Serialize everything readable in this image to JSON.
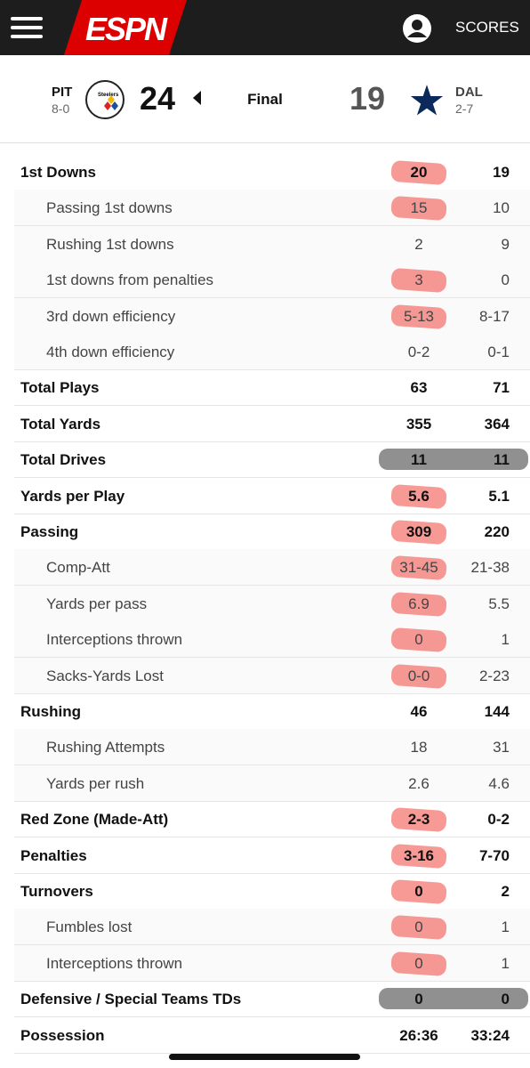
{
  "header": {
    "logo": "ESPN",
    "scores_link": "SCORES"
  },
  "game": {
    "status": "Final",
    "home": {
      "abbr": "PIT",
      "record": "8-0",
      "score": "24",
      "logo_text": "Steelers"
    },
    "away": {
      "abbr": "DAL",
      "record": "2-7",
      "score": "19"
    }
  },
  "table": {
    "rows": [
      {
        "label": "1st Downs",
        "pit": "20",
        "dal": "19",
        "level": "main",
        "highlight": "red"
      },
      {
        "label": "Passing 1st downs",
        "pit": "15",
        "dal": "10",
        "level": "sub",
        "highlight": "red"
      },
      {
        "label": "Rushing 1st downs",
        "pit": "2",
        "dal": "9",
        "level": "sub"
      },
      {
        "label": "1st downs from penalties",
        "pit": "3",
        "dal": "0",
        "level": "sub",
        "highlight": "red"
      },
      {
        "label": "3rd down efficiency",
        "pit": "5-13",
        "dal": "8-17",
        "level": "sub",
        "highlight": "red"
      },
      {
        "label": "4th down efficiency",
        "pit": "0-2",
        "dal": "0-1",
        "level": "sub"
      },
      {
        "label": "Total Plays",
        "pit": "63",
        "dal": "71",
        "level": "main"
      },
      {
        "label": "Total Yards",
        "pit": "355",
        "dal": "364",
        "level": "main"
      },
      {
        "label": "Total Drives",
        "pit": "11",
        "dal": "11",
        "level": "main",
        "highlight": "gray"
      },
      {
        "label": "Yards per Play",
        "pit": "5.6",
        "dal": "5.1",
        "level": "main",
        "highlight": "red"
      },
      {
        "label": "Passing",
        "pit": "309",
        "dal": "220",
        "level": "main",
        "highlight": "red"
      },
      {
        "label": "Comp-Att",
        "pit": "31-45",
        "dal": "21-38",
        "level": "sub",
        "highlight": "red"
      },
      {
        "label": "Yards per pass",
        "pit": "6.9",
        "dal": "5.5",
        "level": "sub",
        "highlight": "red"
      },
      {
        "label": "Interceptions thrown",
        "pit": "0",
        "dal": "1",
        "level": "sub",
        "highlight": "red"
      },
      {
        "label": "Sacks-Yards Lost",
        "pit": "0-0",
        "dal": "2-23",
        "level": "sub",
        "highlight": "red"
      },
      {
        "label": "Rushing",
        "pit": "46",
        "dal": "144",
        "level": "main"
      },
      {
        "label": "Rushing Attempts",
        "pit": "18",
        "dal": "31",
        "level": "sub"
      },
      {
        "label": "Yards per rush",
        "pit": "2.6",
        "dal": "4.6",
        "level": "sub"
      },
      {
        "label": "Red Zone (Made-Att)",
        "pit": "2-3",
        "dal": "0-2",
        "level": "main",
        "highlight": "red"
      },
      {
        "label": "Penalties",
        "pit": "3-16",
        "dal": "7-70",
        "level": "main",
        "highlight": "red"
      },
      {
        "label": "Turnovers",
        "pit": "0",
        "dal": "2",
        "level": "main",
        "highlight": "red"
      },
      {
        "label": "Fumbles lost",
        "pit": "0",
        "dal": "1",
        "level": "sub",
        "highlight": "red"
      },
      {
        "label": "Interceptions thrown",
        "pit": "0",
        "dal": "1",
        "level": "sub",
        "highlight": "red"
      },
      {
        "label": "Defensive / Special Teams TDs",
        "pit": "0",
        "dal": "0",
        "level": "main",
        "highlight": "gray"
      },
      {
        "label": "Possession",
        "pit": "26:36",
        "dal": "33:24",
        "level": "main"
      }
    ]
  }
}
